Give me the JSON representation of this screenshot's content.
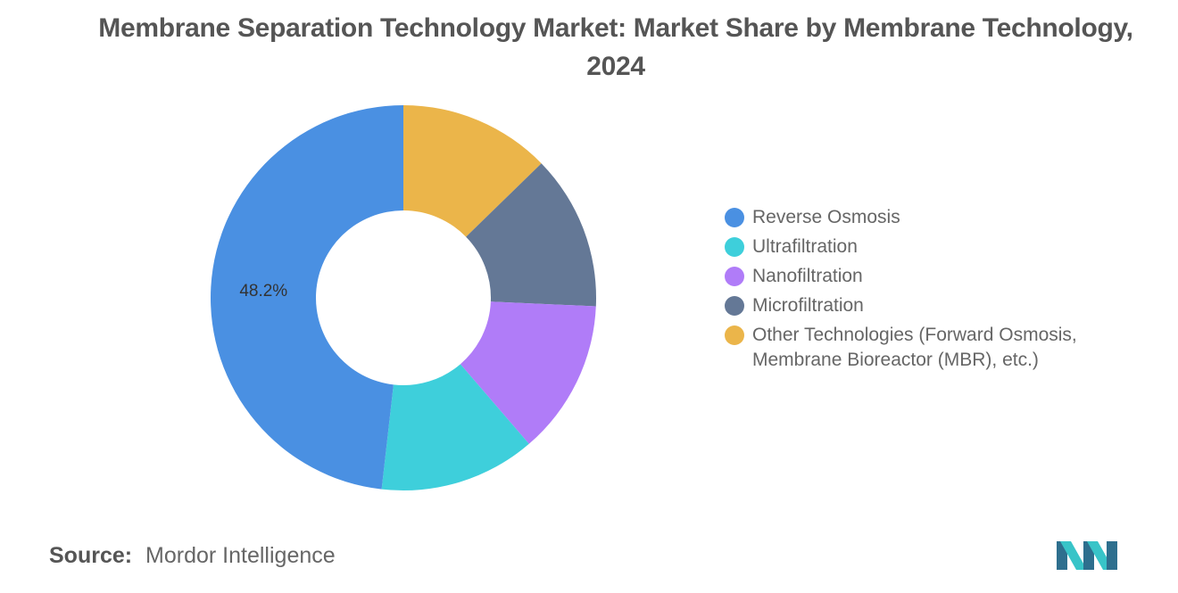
{
  "chart_data": {
    "type": "pie",
    "title": "Membrane Separation Technology Market: Market Share by Membrane Technology, 2024",
    "categories": [
      "Other Technologies (Forward Osmosis, Membrane Bioreactor (MBR), etc.)",
      "Microfiltration",
      "Nanofiltration",
      "Ultrafiltration",
      "Reverse Osmosis"
    ],
    "values": [
      12.7,
      13.0,
      13.0,
      13.1,
      48.2
    ],
    "data_labels": [
      "",
      "",
      "",
      "",
      "48.2%"
    ],
    "donut": true,
    "legend_position": "right"
  },
  "legend": [
    {
      "label": "Reverse Osmosis",
      "color": "#4a90e2"
    },
    {
      "label": "Ultrafiltration",
      "color": "#3ecfdb"
    },
    {
      "label": "Nanofiltration",
      "color": "#b07cf8"
    },
    {
      "label": "Microfiltration",
      "color": "#647896"
    },
    {
      "label": "Other Technologies (Forward Osmosis, Membrane Bioreactor (MBR), etc.)",
      "color": "#ebb54a"
    }
  ],
  "slice_colors": [
    "#ebb54a",
    "#647896",
    "#b07cf8",
    "#3ecfdb",
    "#4a90e2"
  ],
  "source": {
    "label": "Source:",
    "value": "Mordor Intelligence"
  },
  "logo": {
    "icon": "mordor-intelligence-logo-icon",
    "colors": [
      "#2e6f8e",
      "#38c4c8"
    ]
  }
}
